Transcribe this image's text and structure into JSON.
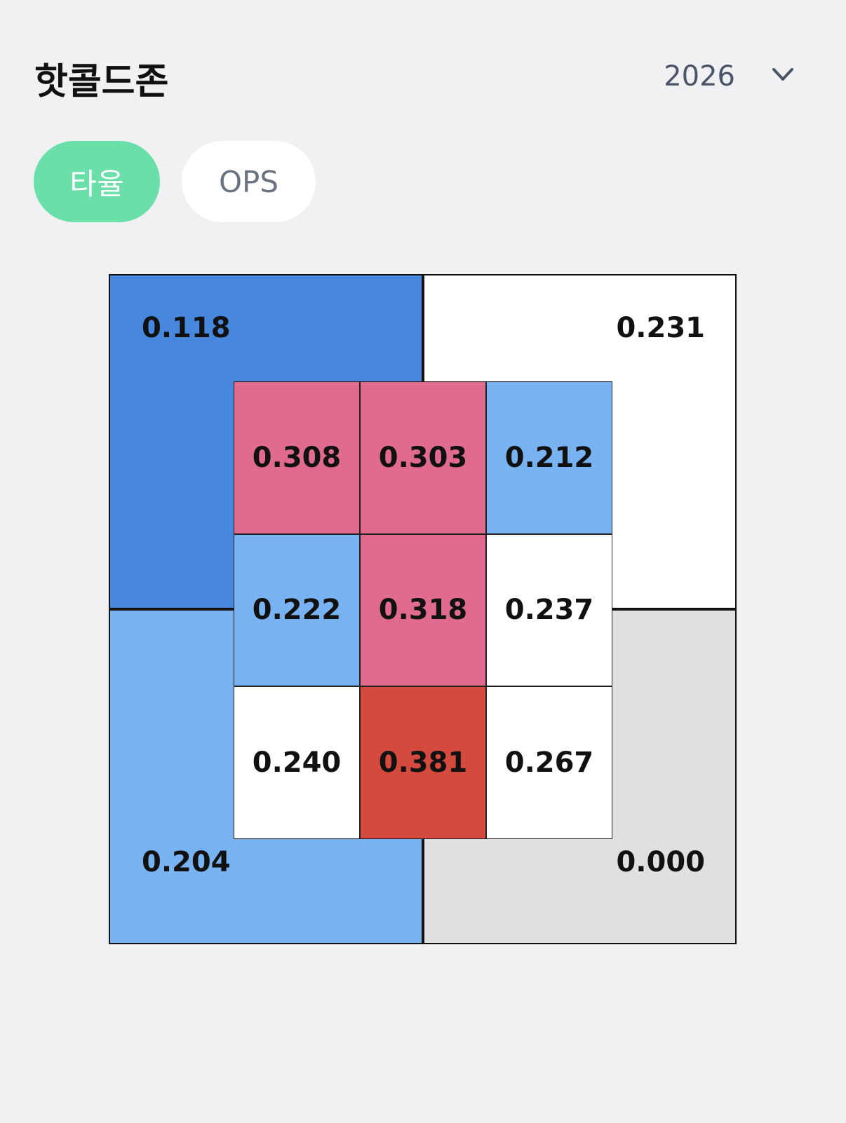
{
  "header": {
    "title": "핫콜드존",
    "year": "2026"
  },
  "tabs": [
    {
      "label": "타율",
      "active": true
    },
    {
      "label": "OPS",
      "active": false
    }
  ],
  "zones": {
    "outer": [
      {
        "label": "0.118",
        "color": "#4787dd"
      },
      {
        "label": "0.231",
        "color": "#ffffff"
      },
      {
        "label": "0.204",
        "color": "#78b2f0"
      },
      {
        "label": "0.000",
        "color": "#e0e0e0"
      }
    ],
    "inner": [
      [
        {
          "label": "0.308",
          "color": "#e06b8f"
        },
        {
          "label": "0.303",
          "color": "#e06b8f"
        },
        {
          "label": "0.212",
          "color": "#78b2f0"
        }
      ],
      [
        {
          "label": "0.222",
          "color": "#78b2f0"
        },
        {
          "label": "0.318",
          "color": "#e06b8f"
        },
        {
          "label": "0.237",
          "color": "#ffffff"
        }
      ],
      [
        {
          "label": "0.240",
          "color": "#ffffff"
        },
        {
          "label": "0.381",
          "color": "#d44a3f"
        },
        {
          "label": "0.267",
          "color": "#ffffff"
        }
      ]
    ]
  }
}
